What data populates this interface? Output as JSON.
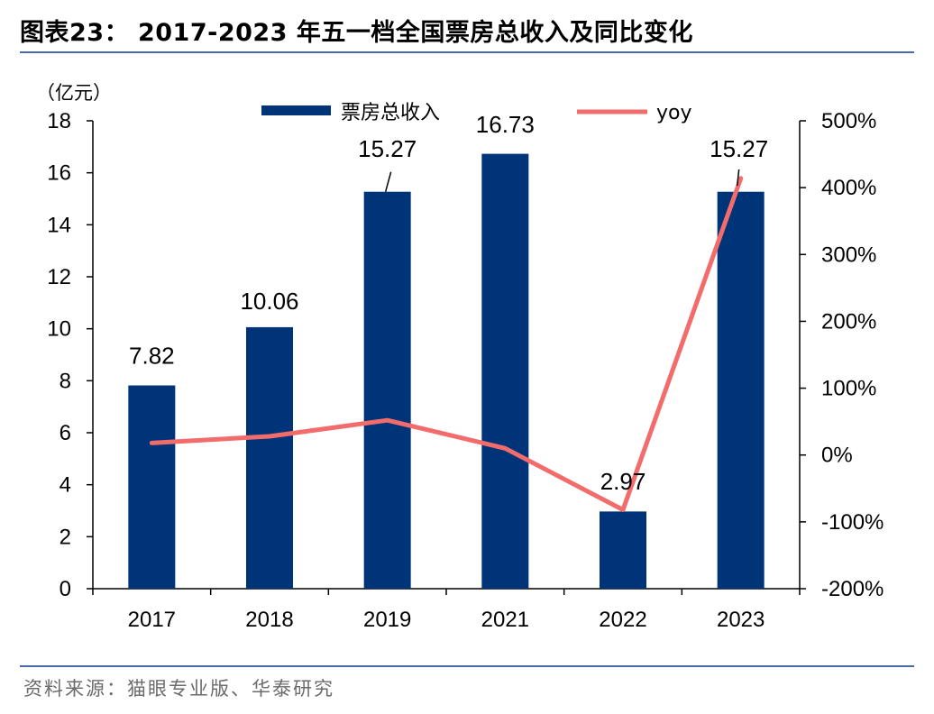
{
  "title": "图表23： 2017-2023 年五一档全国票房总收入及同比变化",
  "source": "资料来源：猫眼专业版、华泰研究",
  "chart_data": {
    "type": "bar",
    "categories": [
      "2017",
      "2018",
      "2019",
      "2021",
      "2022",
      "2023"
    ],
    "y_unit_label": "（亿元）",
    "series": [
      {
        "name": "票房总收入",
        "type": "bar",
        "axis": "left",
        "values": [
          7.82,
          10.06,
          15.27,
          16.73,
          2.97,
          15.27
        ],
        "data_labels": [
          "7.82",
          "10.06",
          "15.27",
          "16.73",
          "2.97",
          "15.27"
        ],
        "color": "#003478"
      },
      {
        "name": "yoy",
        "type": "line",
        "axis": "right",
        "values": [
          18,
          28,
          52,
          10,
          -82,
          414
        ],
        "color": "#f26c6c"
      }
    ],
    "y_left": {
      "min": 0,
      "max": 18,
      "ticks": [
        0,
        2,
        4,
        6,
        8,
        10,
        12,
        14,
        16,
        18
      ]
    },
    "y_right": {
      "min": -200,
      "max": 500,
      "ticks": [
        -200,
        -100,
        0,
        100,
        200,
        300,
        400,
        500
      ],
      "tick_labels": [
        "-200%",
        "-100%",
        "0%",
        "100%",
        "200%",
        "300%",
        "400%",
        "500%"
      ]
    },
    "legend_placement": "top",
    "grid": false
  }
}
